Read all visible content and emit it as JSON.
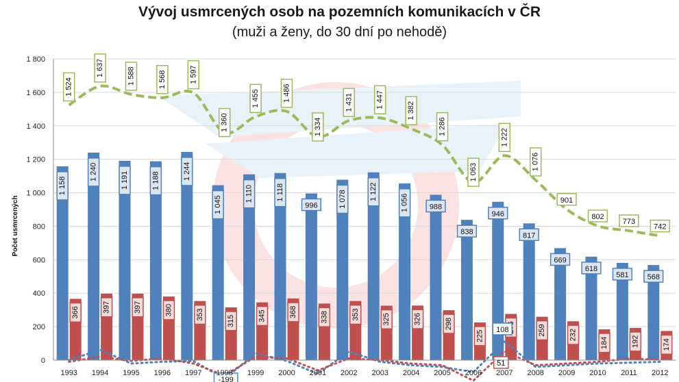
{
  "chart_data": {
    "type": "bar",
    "title": "Vývoj usmrcených osob na pozemních komunikacích v ČR",
    "subtitle": "(muži a ženy, do 30 dní po nehodě)",
    "ylabel": "Počet usmrcených",
    "ylim": [
      0,
      1800
    ],
    "yticks": [
      0,
      200,
      400,
      600,
      800,
      1000,
      1200,
      1400,
      1600,
      1800
    ],
    "ytick_labels": [
      "0",
      "200",
      "400",
      "600",
      "800",
      "1 000",
      "1 200",
      "1 400",
      "1 600",
      "1 800"
    ],
    "grid": true,
    "categories": [
      "1993",
      "1994",
      "1995",
      "1996",
      "1997",
      "1998",
      "1999",
      "2000",
      "2001",
      "2002",
      "2003",
      "2004",
      "2005",
      "2006",
      "2007",
      "2008",
      "2009",
      "2010",
      "2011",
      "2012"
    ],
    "series": [
      {
        "kind": "bar",
        "color": "#4f81bd",
        "label_border": "#4f81bd",
        "label_fill": "#dce6f2",
        "values": [
          1158,
          1240,
          1191,
          1188,
          1244,
          1045,
          1110,
          1118,
          996,
          1078,
          1122,
          1056,
          988,
          838,
          946,
          817,
          669,
          618,
          581,
          568
        ],
        "labels": [
          "1 158",
          "1 240",
          "1 191",
          "1 188",
          "1 244",
          "1 045",
          "1 110",
          "1 118",
          "996",
          "1 078",
          "1 122",
          "1 056",
          "988",
          "838",
          "946",
          "817",
          "669",
          "618",
          "581",
          "568"
        ],
        "vertical_labels": [
          true,
          true,
          true,
          true,
          true,
          true,
          true,
          true,
          false,
          true,
          true,
          true,
          false,
          false,
          false,
          false,
          false,
          false,
          false,
          false
        ]
      },
      {
        "kind": "bar",
        "color": "#c0504d",
        "label_border": "#c0504d",
        "label_fill": "#f2dcdb",
        "values": [
          366,
          397,
          397,
          380,
          353,
          315,
          345,
          368,
          338,
          353,
          325,
          326,
          298,
          225,
          276,
          259,
          232,
          184,
          192,
          174
        ],
        "labels": [
          "366",
          "397",
          "397",
          "380",
          "353",
          "315",
          "345",
          "368",
          "338",
          "353",
          "325",
          "326",
          "298",
          "225",
          "276",
          "259",
          "232",
          "184",
          "192",
          "174"
        ]
      },
      {
        "kind": "line",
        "color": "#9bbb59",
        "label_border": "#9bbb59",
        "label_fill": "#ffffff",
        "values": [
          1524,
          1637,
          1588,
          1568,
          1597,
          1360,
          1455,
          1486,
          1334,
          1431,
          1447,
          1382,
          1286,
          1063,
          1222,
          1076,
          901,
          802,
          773,
          742
        ],
        "labels": [
          "1 524",
          "1 637",
          "1 588",
          "1 568",
          "1 597",
          "1 360",
          "1 455",
          "1 486",
          "1 334",
          "1 431",
          "1 447",
          "1 382",
          "1 286",
          "1 063",
          "1 222",
          "1 076",
          "901",
          "802",
          "773",
          "742"
        ],
        "vertical_labels": [
          true,
          true,
          true,
          true,
          true,
          true,
          true,
          true,
          true,
          true,
          true,
          true,
          true,
          true,
          true,
          true,
          false,
          false,
          false,
          false
        ]
      }
    ],
    "visible_low_labels": [
      "108",
      "51",
      "-199"
    ]
  },
  "colors": {
    "background": "#ffffff",
    "grid": "#d9d9d9",
    "axis": "#888888"
  }
}
